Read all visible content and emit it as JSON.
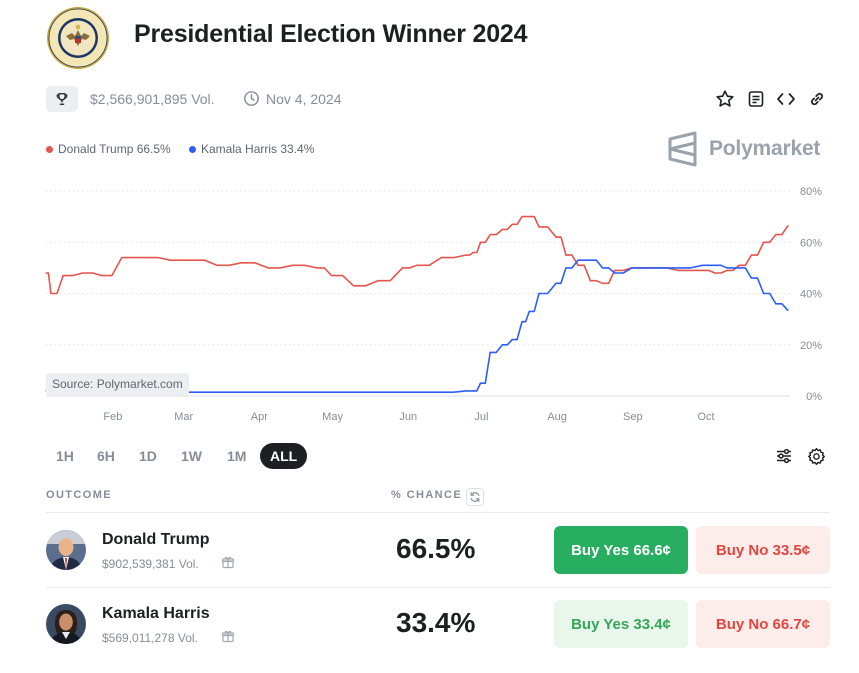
{
  "header": {
    "title": "Presidential Election Winner 2024",
    "volume": "$2,566,901,895 Vol.",
    "date": "Nov 4, 2024",
    "seal_text": "SEAL OF THE PRESIDENT OF THE UNITED STATES"
  },
  "toolbar": {
    "icons": [
      "star-icon",
      "document-icon",
      "embed-code-icon",
      "link-icon"
    ]
  },
  "legend": [
    {
      "label": "Donald Trump 66.5%",
      "color": "#e6544c"
    },
    {
      "label": "Kamala Harris 33.4%",
      "color": "#2c5ef5"
    }
  ],
  "brand": "Polymarket",
  "watermark": "Source: Polymarket.com",
  "chart_data": {
    "type": "line",
    "x_tick_labels": [
      "Feb",
      "Mar",
      "Apr",
      "May",
      "Jun",
      "Jul",
      "Aug",
      "Sep",
      "Oct"
    ],
    "y_tick_labels": [
      "80%",
      "60%",
      "40%",
      "20%",
      "0%"
    ],
    "ylim": [
      0,
      80
    ],
    "grid": true,
    "x": [
      "Jan 5",
      "Jan 7",
      "Jan 12",
      "Jan 20",
      "Jan 28",
      "Feb 5",
      "Feb 15",
      "Feb 25",
      "Mar 5",
      "Mar 15",
      "Mar 25",
      "Apr 5",
      "Apr 15",
      "Apr 25",
      "May 1",
      "May 10",
      "May 20",
      "May 30",
      "Jun 5",
      "Jun 15",
      "Jun 25",
      "Jun 28",
      "Jul 1",
      "Jul 5",
      "Jul 10",
      "Jul 14",
      "Jul 18",
      "Jul 21",
      "Jul 25",
      "Aug 1",
      "Aug 5",
      "Aug 10",
      "Aug 15",
      "Aug 20",
      "Aug 25",
      "Sep 1",
      "Sep 10",
      "Sep 20",
      "Sep 30",
      "Oct 5",
      "Oct 10",
      "Oct 15",
      "Oct 20",
      "Oct 25",
      "Oct 30",
      "Nov 4"
    ],
    "series": [
      {
        "name": "Donald Trump",
        "color": "#e6544c",
        "values": [
          48,
          40,
          47,
          48,
          47,
          54,
          54,
          53,
          53,
          51,
          52,
          50,
          51,
          50,
          47,
          43,
          45,
          50,
          51,
          54,
          55,
          56,
          60,
          63,
          65,
          67,
          70,
          70,
          66,
          62,
          55,
          51,
          45,
          44,
          49,
          50,
          50,
          49,
          49,
          48,
          49,
          51,
          55,
          60,
          63,
          66.5
        ]
      },
      {
        "name": "Kamala Harris",
        "color": "#2c5ef5",
        "values": [
          2,
          2,
          1.5,
          2,
          1.5,
          1.5,
          1.5,
          1.5,
          1.5,
          1.5,
          1.5,
          1.5,
          1.5,
          1.5,
          1.5,
          1.5,
          1.5,
          1.5,
          1.5,
          1.5,
          2,
          2,
          5,
          17,
          20,
          22,
          29,
          33,
          40,
          44,
          50,
          53,
          53,
          50,
          48,
          50,
          50,
          50,
          51,
          51,
          50,
          50,
          46,
          40,
          36,
          33.4
        ]
      }
    ]
  },
  "periods": [
    {
      "label": "1H",
      "active": false
    },
    {
      "label": "6H",
      "active": false
    },
    {
      "label": "1D",
      "active": false
    },
    {
      "label": "1W",
      "active": false
    },
    {
      "label": "1M",
      "active": false
    },
    {
      "label": "ALL",
      "active": true
    }
  ],
  "table": {
    "col_outcome": "OUTCOME",
    "col_chance": "% CHANCE",
    "rows": [
      {
        "name": "Donald Trump",
        "volume": "$902,539,381 Vol.",
        "chance": "66.5%",
        "buy_yes": "Buy Yes 66.6¢",
        "buy_no": "Buy No 33.5¢"
      },
      {
        "name": "Kamala Harris",
        "volume": "$569,011,278 Vol.",
        "chance": "33.4%",
        "buy_yes": "Buy Yes 33.4¢",
        "buy_no": "Buy No 66.7¢"
      }
    ]
  }
}
